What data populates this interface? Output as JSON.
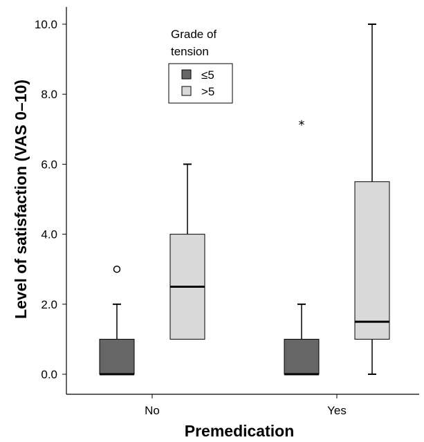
{
  "chart_data": {
    "type": "boxplot",
    "title": "",
    "xlabel": "Premedication",
    "ylabel": "Level of satisfaction (VAS 0–10)",
    "categories": [
      "No",
      "Yes"
    ],
    "ylim": [
      0,
      10
    ],
    "yticks": [
      "0.0",
      "2.0",
      "4.0",
      "6.0",
      "8.0",
      "10.0"
    ],
    "grid": false,
    "legend": {
      "title": "Grade of tension",
      "position": "top-center"
    },
    "series": [
      {
        "name": "≤5",
        "color": "#666666",
        "boxes": [
          {
            "category": "No",
            "min": 0,
            "q1": 0,
            "median": 0,
            "q3": 1,
            "max": 2,
            "outliers": [
              3
            ],
            "outlier_symbol": "circle"
          },
          {
            "category": "Yes",
            "min": 0,
            "q1": 0,
            "median": 0,
            "q3": 1,
            "max": 2,
            "outliers": [
              7.2
            ],
            "outlier_symbol": "star"
          }
        ]
      },
      {
        "name": ">5",
        "color": "#d9d9d9",
        "boxes": [
          {
            "category": "No",
            "min": 1,
            "q1": 1,
            "median": 2.5,
            "q3": 4,
            "max": 6,
            "outliers": []
          },
          {
            "category": "Yes",
            "min": 0,
            "q1": 1,
            "median": 1.5,
            "q3": 5.5,
            "max": 10,
            "outliers": []
          }
        ]
      }
    ]
  }
}
